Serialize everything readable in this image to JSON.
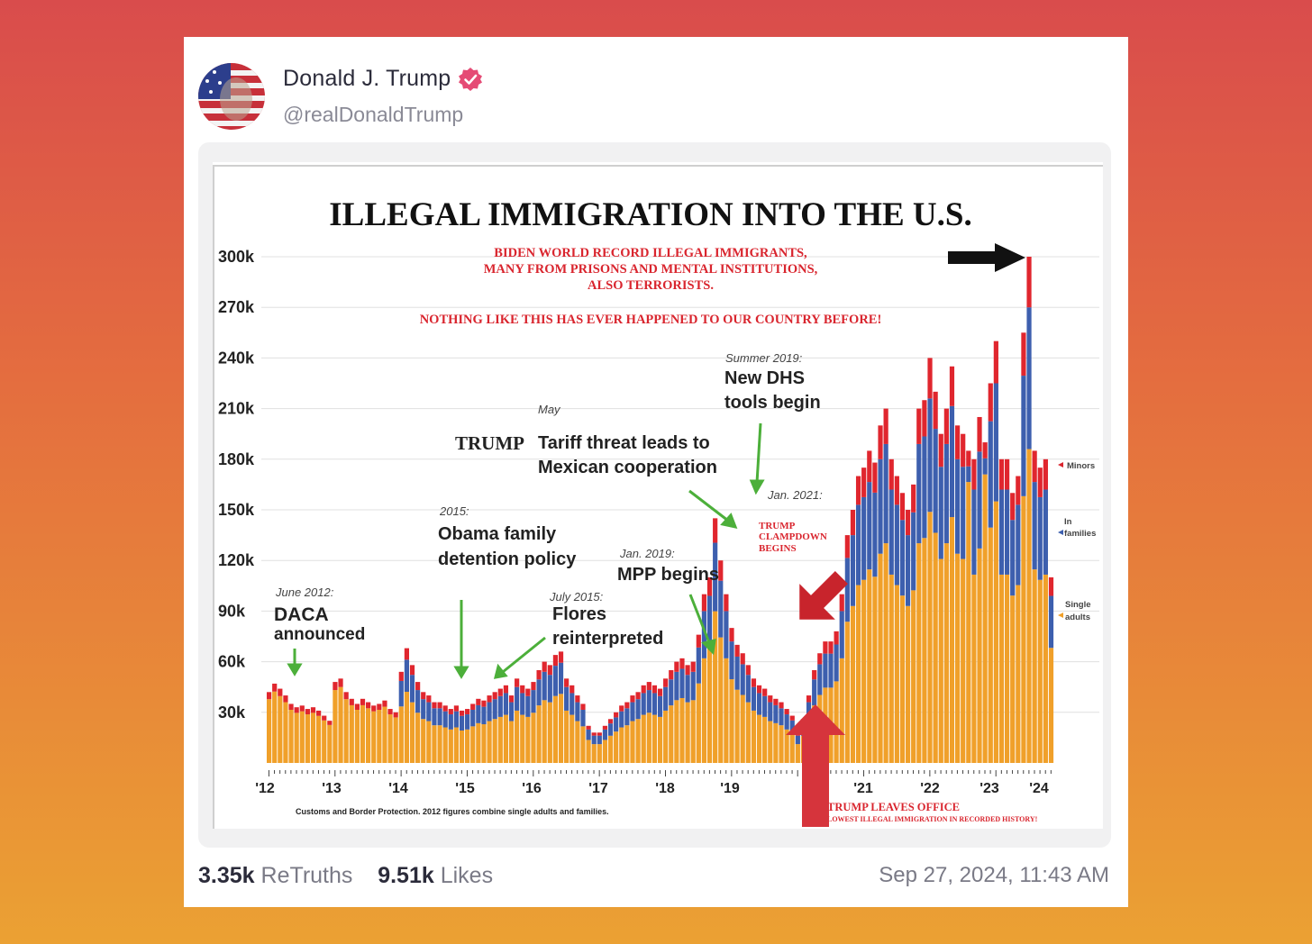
{
  "post": {
    "author_name": "Donald J. Trump",
    "author_handle": "@realDonaldTrump",
    "retruths_count": "3.35k",
    "retruths_label": "ReTruths",
    "likes_count": "9.51k",
    "likes_label": "Likes",
    "timestamp": "Sep 27, 2024, 11:43 AM",
    "verified_icon": "verified-badge-icon",
    "avatar_icon": "avatar-flag-portrait"
  },
  "chart_data": {
    "type": "bar",
    "title": "ILLEGAL IMMIGRATION INTO THE U.S.",
    "subtitle_lines": [
      "BIDEN WORLD RECORD ILLEGAL IMMIGRANTS,",
      "MANY FROM PRISONS AND MENTAL INSTITUTIONS,",
      "ALSO TERRORISTS."
    ],
    "subtitle2": "NOTHING LIKE THIS HAS EVER HAPPENED TO OUR COUNTRY BEFORE!",
    "ylim": [
      0,
      300000
    ],
    "y_ticks": [
      "30k",
      "60k",
      "90k",
      "120k",
      "150k",
      "180k",
      "210k",
      "240k",
      "270k",
      "300k"
    ],
    "x_ticks": [
      "'12",
      "'13",
      "'14",
      "'15",
      "'16",
      "'17",
      "'18",
      "'19",
      "'21",
      "'22",
      "'23",
      "'24"
    ],
    "series": [
      {
        "name": "Single adults",
        "color": "#f0a02a"
      },
      {
        "name": "In families",
        "color": "#3d5fae"
      },
      {
        "name": "Minors",
        "color": "#e0262e"
      }
    ],
    "legend_labels": {
      "minors": "Minors",
      "families": [
        "In",
        "families"
      ],
      "single": [
        "Single",
        "adults"
      ]
    },
    "footnote": "Customs and Border Protection. 2012 figures combine single adults and families.",
    "annotations": {
      "daca_date": "June 2012:",
      "daca_lines": [
        "DACA",
        "announced"
      ],
      "obama_date": "2015:",
      "obama_lines": [
        "Obama family",
        "detention policy"
      ],
      "flores_date": "July 2015:",
      "flores_lines": [
        "Flores",
        "reinterpreted"
      ],
      "tariff_date": "May",
      "tariff_bold": "TRUMP",
      "tariff_lines": [
        "Tariff threat leads to",
        "Mexican cooperation"
      ],
      "mpp_date": "Jan. 2019:",
      "mpp_text": "MPP begins",
      "dhs_date": "Summer 2019:",
      "dhs_lines": [
        "New DHS",
        "tools begin"
      ],
      "jan2021": "Jan. 2021:",
      "clampdown_lines": [
        "TRUMP",
        "CLAMPDOWN",
        "BEGINS"
      ],
      "leaves_office": "TRUMP LEAVES OFFICE",
      "lowest": "LOWEST ILLEGAL IMMIGRATION IN RECORDED HISTORY!"
    },
    "monthly_totals_approx": [
      42,
      47,
      44,
      40,
      35,
      33,
      34,
      32,
      33,
      31,
      28,
      25,
      48,
      50,
      42,
      38,
      35,
      38,
      36,
      34,
      35,
      37,
      32,
      30,
      54,
      68,
      58,
      48,
      42,
      40,
      36,
      36,
      34,
      32,
      34,
      31,
      32,
      35,
      38,
      37,
      40,
      42,
      44,
      46,
      40,
      50,
      46,
      44,
      48,
      55,
      60,
      58,
      64,
      66,
      50,
      46,
      40,
      35,
      22,
      18,
      18,
      22,
      26,
      30,
      34,
      36,
      40,
      42,
      46,
      48,
      46,
      44,
      50,
      55,
      60,
      62,
      58,
      60,
      76,
      100,
      110,
      145,
      120,
      100,
      80,
      70,
      65,
      58,
      50,
      46,
      44,
      40,
      38,
      36,
      32,
      28,
      18,
      26,
      40,
      55,
      65,
      72,
      72,
      78,
      100,
      135,
      150,
      170,
      175,
      185,
      178,
      200,
      210,
      180,
      170,
      160,
      150,
      165,
      210,
      215,
      240,
      220,
      195,
      210,
      235,
      200,
      195,
      185,
      180,
      205,
      190,
      225,
      250,
      180,
      180,
      160,
      170,
      255,
      300,
      185,
      175,
      180,
      110
    ]
  }
}
